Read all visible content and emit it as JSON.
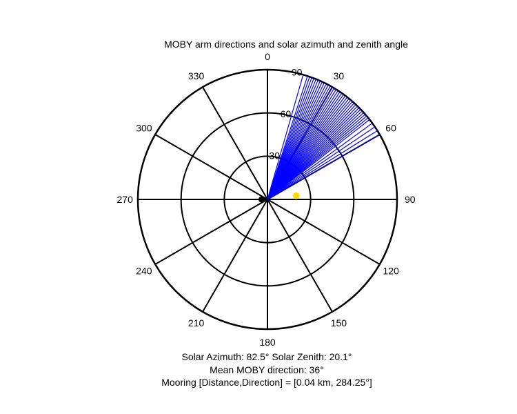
{
  "chart_data": {
    "type": "polar",
    "title": "MOBY arm directions and solar azimuth and zenith angle",
    "angle_ticks": [
      "0",
      "30",
      "60",
      "90",
      "120",
      "150",
      "180",
      "210",
      "240",
      "270",
      "300",
      "330"
    ],
    "radial_ticks": [
      "30",
      "60",
      "90"
    ],
    "radial_range": [
      0,
      90
    ],
    "angle_zero": "north",
    "angle_direction": "clockwise",
    "grid": true,
    "arm_directions_deg": [
      16,
      18,
      19,
      20,
      21,
      22,
      23,
      24,
      25,
      26,
      27,
      28,
      29,
      30,
      31,
      32,
      33,
      34,
      35,
      36,
      37,
      38,
      39,
      40,
      41,
      42,
      43,
      44,
      45,
      46,
      47,
      48,
      49,
      50,
      51,
      52,
      54,
      56,
      58,
      60
    ],
    "arm_length": 90,
    "arm_color": "#0000ff",
    "sun": {
      "azimuth": 82.5,
      "zenith": 20.1,
      "color": "#ffd700"
    },
    "mooring_marker": {
      "color": "#000000"
    },
    "captions": [
      "Solar Azimuth: 82.5° Solar Zenith: 20.1°",
      "Mean MOBY direction: 36°",
      "Mooring [Distance,Direction] = [0.04 km, 284.25°]"
    ]
  }
}
